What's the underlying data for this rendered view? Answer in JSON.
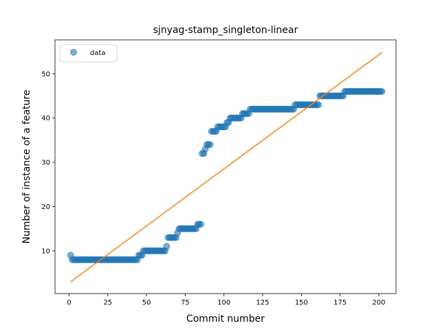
{
  "chart_data": {
    "type": "scatter",
    "title": "sjnyag-stamp_singleton-linear",
    "xlabel": "Commit number",
    "ylabel": "Number of instance of a feature",
    "xlim": [
      -9.1,
      211.1
    ],
    "ylim": [
      0.35,
      57.65
    ],
    "xticks": [
      0,
      25,
      50,
      75,
      100,
      125,
      150,
      175,
      200
    ],
    "yticks": [
      10,
      20,
      30,
      40,
      50
    ],
    "grid": false,
    "legend": {
      "position": "top-left",
      "entries": [
        "data"
      ]
    },
    "colors": {
      "data": "#1f77b4",
      "fit": "#ff7f0e"
    },
    "series": [
      {
        "name": "data",
        "kind": "scatter",
        "runs": [
          {
            "from": 1,
            "to": 1,
            "y": 9
          },
          {
            "from": 2,
            "to": 44,
            "y": 8
          },
          {
            "from": 45,
            "to": 47,
            "y": 9
          },
          {
            "from": 48,
            "to": 62,
            "y": 10
          },
          {
            "from": 63,
            "to": 63,
            "y": 11
          },
          {
            "from": 64,
            "to": 69,
            "y": 13
          },
          {
            "from": 70,
            "to": 70,
            "y": 14
          },
          {
            "from": 71,
            "to": 82,
            "y": 15
          },
          {
            "from": 83,
            "to": 85,
            "y": 16
          },
          {
            "from": 86,
            "to": 87,
            "y": 32
          },
          {
            "from": 88,
            "to": 88,
            "y": 33
          },
          {
            "from": 89,
            "to": 91,
            "y": 34
          },
          {
            "from": 92,
            "to": 95,
            "y": 37
          },
          {
            "from": 96,
            "to": 101,
            "y": 38
          },
          {
            "from": 102,
            "to": 103,
            "y": 39
          },
          {
            "from": 104,
            "to": 111,
            "y": 40
          },
          {
            "from": 112,
            "to": 116,
            "y": 41
          },
          {
            "from": 117,
            "to": 145,
            "y": 42
          },
          {
            "from": 146,
            "to": 161,
            "y": 43
          },
          {
            "from": 162,
            "to": 177,
            "y": 45
          },
          {
            "from": 178,
            "to": 202,
            "y": 46
          }
        ]
      },
      {
        "name": "",
        "kind": "line",
        "x": [
          1,
          202
        ],
        "y": [
          3.0,
          54.8
        ]
      }
    ]
  }
}
